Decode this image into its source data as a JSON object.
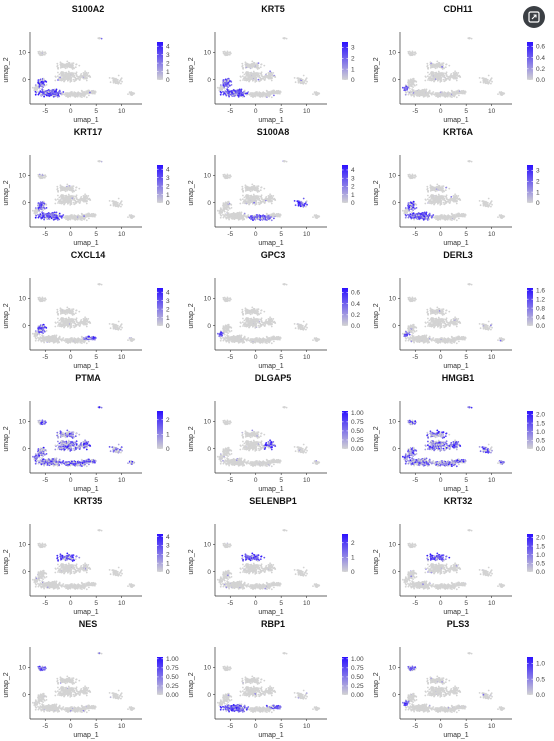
{
  "icons": {
    "action": "image-expand-icon"
  },
  "colors": {
    "low": "#d3d3d3",
    "high": "#2b10ff",
    "axis": "#333333"
  },
  "chart_data": {
    "type": "scatter",
    "xlabel": "umap_1",
    "ylabel": "umap_2",
    "xlim": [
      -8,
      14
    ],
    "ylim": [
      -9,
      16
    ],
    "xticks": [
      "-5",
      "0",
      "5",
      "10"
    ],
    "yticks": [
      "0",
      "10"
    ],
    "panels": [
      {
        "gene": "S100A2",
        "max": 4.5,
        "colorbar_ticks": [
          "4",
          "3",
          "2",
          "1",
          "0"
        ],
        "hotspots": [
          "basal",
          "left_mid"
        ]
      },
      {
        "gene": "KRT5",
        "max": 3.5,
        "colorbar_ticks": [
          "3",
          "2",
          "1",
          "0"
        ],
        "hotspots": [
          "basal",
          "left_mid"
        ]
      },
      {
        "gene": "CDH11",
        "max": 0.68,
        "colorbar_ticks": [
          "0.6",
          "0.4",
          "0.2",
          "0.0"
        ],
        "hotspots": [
          "sparse_left"
        ]
      },
      {
        "gene": "KRT17",
        "max": 4.5,
        "colorbar_ticks": [
          "4",
          "3",
          "2",
          "1",
          "0"
        ],
        "hotspots": [
          "basal",
          "left_mid"
        ]
      },
      {
        "gene": "S100A8",
        "max": 4.6,
        "colorbar_ticks": [
          "4",
          "3",
          "2",
          "1",
          "0"
        ],
        "hotspots": [
          "basal_center",
          "right_tail"
        ]
      },
      {
        "gene": "KRT6A",
        "max": 3.5,
        "colorbar_ticks": [
          "3",
          "2",
          "1",
          "0"
        ],
        "hotspots": [
          "basal",
          "left_mid"
        ]
      },
      {
        "gene": "CXCL14",
        "max": 4.5,
        "colorbar_ticks": [
          "4",
          "3",
          "2",
          "1",
          "0"
        ],
        "hotspots": [
          "left_mid",
          "bottom_right"
        ]
      },
      {
        "gene": "GPC3",
        "max": 0.68,
        "colorbar_ticks": [
          "0.6",
          "0.4",
          "0.2",
          "0.0"
        ],
        "hotspots": [
          "sparse_left"
        ]
      },
      {
        "gene": "DERL3",
        "max": 1.7,
        "colorbar_ticks": [
          "1.6",
          "1.2",
          "0.8",
          "0.4",
          "0.0"
        ],
        "hotspots": [
          "sparse_left"
        ]
      },
      {
        "gene": "PTMA",
        "max": 2.6,
        "colorbar_ticks": [
          "2",
          "1",
          "0"
        ],
        "hotspots": [
          "all"
        ]
      },
      {
        "gene": "DLGAP5",
        "max": 1.05,
        "colorbar_ticks": [
          "1.00",
          "0.75",
          "0.50",
          "0.25",
          "0.00"
        ],
        "hotspots": [
          "cycling"
        ]
      },
      {
        "gene": "HMGB1",
        "max": 2.2,
        "colorbar_ticks": [
          "2.0",
          "1.5",
          "1.0",
          "0.5",
          "0.0"
        ],
        "hotspots": [
          "all"
        ]
      },
      {
        "gene": "KRT35",
        "max": 4.3,
        "colorbar_ticks": [
          "4",
          "3",
          "2",
          "1",
          "0"
        ],
        "hotspots": [
          "upper_center"
        ]
      },
      {
        "gene": "SELENBP1",
        "max": 2.6,
        "colorbar_ticks": [
          "2",
          "1",
          "0"
        ],
        "hotspots": [
          "upper_center"
        ]
      },
      {
        "gene": "KRT32",
        "max": 2.2,
        "colorbar_ticks": [
          "2.0",
          "1.5",
          "1.0",
          "0.5",
          "0.0"
        ],
        "hotspots": [
          "upper_center"
        ]
      },
      {
        "gene": "NES",
        "max": 1.05,
        "colorbar_ticks": [
          "1.00",
          "0.75",
          "0.50",
          "0.25",
          "0.00"
        ],
        "hotspots": [
          "top_left"
        ]
      },
      {
        "gene": "RBP1",
        "max": 1.05,
        "colorbar_ticks": [
          "1.00",
          "0.75",
          "0.50",
          "0.25",
          "0.00"
        ],
        "hotspots": [
          "basal",
          "bottom_right"
        ]
      },
      {
        "gene": "PLS3",
        "max": 1.2,
        "colorbar_ticks": [
          "1.0",
          "0.5",
          "0.0"
        ],
        "hotspots": [
          "top_left",
          "sparse_left"
        ]
      }
    ]
  }
}
